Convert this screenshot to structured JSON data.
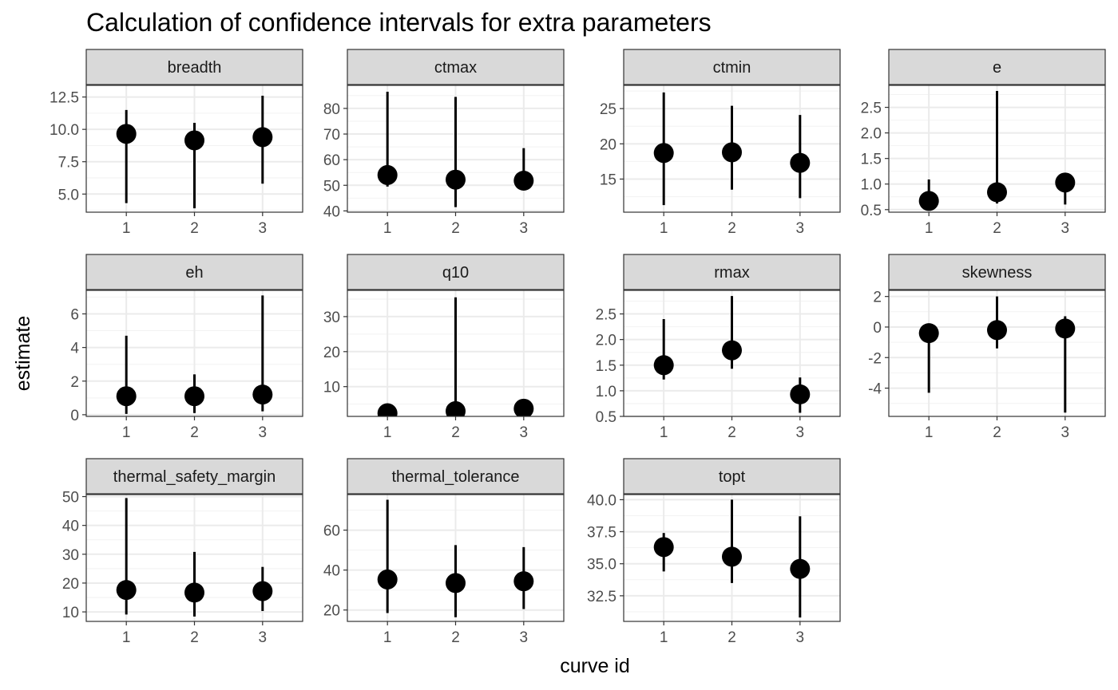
{
  "chart_data": {
    "type": "scatter",
    "title": "Calculation of confidence intervals for extra parameters",
    "xlabel": "curve id",
    "ylabel": "estimate",
    "colors": {
      "point": "#000000",
      "strip_fill": "#d9d9d9",
      "panel_border": "#333333",
      "grid_major": "#ebebeb",
      "grid_minor": "#f2f2f2"
    },
    "x_categories": [
      "1",
      "2",
      "3"
    ],
    "facets": [
      {
        "name": "breadth",
        "ylim": [
          3.6,
          13.4
        ],
        "ticks": [
          5.0,
          7.5,
          10.0,
          12.5
        ],
        "tick_labels": [
          "5.0",
          "7.5",
          "10.0",
          "12.5"
        ],
        "points": [
          {
            "x": "1",
            "estimate": 9.65,
            "conf_lower": 4.3,
            "conf_upper": 11.5
          },
          {
            "x": "2",
            "estimate": 9.15,
            "conf_lower": 3.9,
            "conf_upper": 10.5
          },
          {
            "x": "3",
            "estimate": 9.4,
            "conf_lower": 5.8,
            "conf_upper": 12.6
          }
        ]
      },
      {
        "name": "ctmax",
        "ylim": [
          39.5,
          89
        ],
        "ticks": [
          40,
          50,
          60,
          70,
          80
        ],
        "tick_labels": [
          "40",
          "50",
          "60",
          "70",
          "80"
        ],
        "points": [
          {
            "x": "1",
            "estimate": 54,
            "conf_lower": 49.5,
            "conf_upper": 86.5
          },
          {
            "x": "2",
            "estimate": 52.2,
            "conf_lower": 41.5,
            "conf_upper": 84.5
          },
          {
            "x": "3",
            "estimate": 51.8,
            "conf_lower": 50,
            "conf_upper": 64.5
          }
        ]
      },
      {
        "name": "ctmin",
        "ylim": [
          10.3,
          28.3
        ],
        "ticks": [
          15,
          20,
          25
        ],
        "tick_labels": [
          "15",
          "20",
          "25"
        ],
        "points": [
          {
            "x": "1",
            "estimate": 18.7,
            "conf_lower": 11.3,
            "conf_upper": 27.3
          },
          {
            "x": "2",
            "estimate": 18.8,
            "conf_lower": 13.5,
            "conf_upper": 25.4
          },
          {
            "x": "3",
            "estimate": 17.3,
            "conf_lower": 12.3,
            "conf_upper": 24.1
          }
        ]
      },
      {
        "name": "e",
        "ylim": [
          0.45,
          2.93
        ],
        "ticks": [
          0.5,
          1.0,
          1.5,
          2.0,
          2.5
        ],
        "tick_labels": [
          "0.5",
          "1.0",
          "1.5",
          "2.0",
          "2.5"
        ],
        "points": [
          {
            "x": "1",
            "estimate": 0.67,
            "conf_lower": 0.55,
            "conf_upper": 1.09
          },
          {
            "x": "2",
            "estimate": 0.84,
            "conf_lower": 0.62,
            "conf_upper": 2.82
          },
          {
            "x": "3",
            "estimate": 1.03,
            "conf_lower": 0.6,
            "conf_upper": 1.03
          }
        ]
      },
      {
        "name": "eh",
        "ylim": [
          -0.1,
          7.4
        ],
        "ticks": [
          0,
          2,
          4,
          6
        ],
        "tick_labels": [
          "0",
          "2",
          "4",
          "6"
        ],
        "points": [
          {
            "x": "1",
            "estimate": 1.1,
            "conf_lower": 0.05,
            "conf_upper": 4.7
          },
          {
            "x": "2",
            "estimate": 1.1,
            "conf_lower": 0.1,
            "conf_upper": 2.4
          },
          {
            "x": "3",
            "estimate": 1.2,
            "conf_lower": 0.2,
            "conf_upper": 7.1
          }
        ]
      },
      {
        "name": "q10",
        "ylim": [
          1.5,
          37.5
        ],
        "ticks": [
          10,
          20,
          30
        ],
        "tick_labels": [
          "10",
          "20",
          "30"
        ],
        "points": [
          {
            "x": "1",
            "estimate": 2.4,
            "conf_lower": 1.7,
            "conf_upper": 2.8
          },
          {
            "x": "2",
            "estimate": 3.0,
            "conf_lower": 1.8,
            "conf_upper": 35.5
          },
          {
            "x": "3",
            "estimate": 3.7,
            "conf_lower": 2.2,
            "conf_upper": 4.8
          }
        ]
      },
      {
        "name": "rmax",
        "ylim": [
          0.5,
          2.96
        ],
        "ticks": [
          0.5,
          1.0,
          1.5,
          2.0,
          2.5
        ],
        "tick_labels": [
          "0.5",
          "1.0",
          "1.5",
          "2.0",
          "2.5"
        ],
        "points": [
          {
            "x": "1",
            "estimate": 1.5,
            "conf_lower": 1.22,
            "conf_upper": 2.4
          },
          {
            "x": "2",
            "estimate": 1.79,
            "conf_lower": 1.43,
            "conf_upper": 2.85
          },
          {
            "x": "3",
            "estimate": 0.93,
            "conf_lower": 0.57,
            "conf_upper": 1.26
          }
        ]
      },
      {
        "name": "skewness",
        "ylim": [
          -5.85,
          2.4
        ],
        "ticks": [
          -4,
          -2,
          0,
          2
        ],
        "tick_labels": [
          "-4",
          "-2",
          "0",
          "2"
        ],
        "points": [
          {
            "x": "1",
            "estimate": -0.4,
            "conf_lower": -4.3,
            "conf_upper": 0.2
          },
          {
            "x": "2",
            "estimate": -0.2,
            "conf_lower": -1.4,
            "conf_upper": 2.0
          },
          {
            "x": "3",
            "estimate": -0.1,
            "conf_lower": -5.6,
            "conf_upper": 0.7
          }
        ]
      },
      {
        "name": "thermal_safety_margin",
        "ylim": [
          6.7,
          50.7
        ],
        "ticks": [
          10,
          20,
          30,
          40,
          50
        ],
        "tick_labels": [
          "10",
          "20",
          "30",
          "40",
          "50"
        ],
        "points": [
          {
            "x": "1",
            "estimate": 17.6,
            "conf_lower": 9.1,
            "conf_upper": 49.5
          },
          {
            "x": "2",
            "estimate": 16.7,
            "conf_lower": 8.4,
            "conf_upper": 30.8
          },
          {
            "x": "3",
            "estimate": 17.2,
            "conf_lower": 10.3,
            "conf_upper": 25.6
          }
        ]
      },
      {
        "name": "thermal_tolerance",
        "ylim": [
          14.3,
          77.8
        ],
        "ticks": [
          20,
          40,
          60
        ],
        "tick_labels": [
          "20",
          "40",
          "60"
        ],
        "points": [
          {
            "x": "1",
            "estimate": 35.3,
            "conf_lower": 18.5,
            "conf_upper": 75.2
          },
          {
            "x": "2",
            "estimate": 33.5,
            "conf_lower": 16.4,
            "conf_upper": 52.5
          },
          {
            "x": "3",
            "estimate": 34.4,
            "conf_lower": 20.5,
            "conf_upper": 51.5
          }
        ]
      },
      {
        "name": "topt",
        "ylim": [
          30.5,
          40.4
        ],
        "ticks": [
          32.5,
          35.0,
          37.5,
          40.0
        ],
        "tick_labels": [
          "32.5",
          "35.0",
          "37.5",
          "40.0"
        ],
        "points": [
          {
            "x": "1",
            "estimate": 36.3,
            "conf_lower": 34.4,
            "conf_upper": 37.4
          },
          {
            "x": "2",
            "estimate": 35.55,
            "conf_lower": 33.5,
            "conf_upper": 40.0
          },
          {
            "x": "3",
            "estimate": 34.6,
            "conf_lower": 30.8,
            "conf_upper": 38.7
          }
        ]
      }
    ]
  }
}
